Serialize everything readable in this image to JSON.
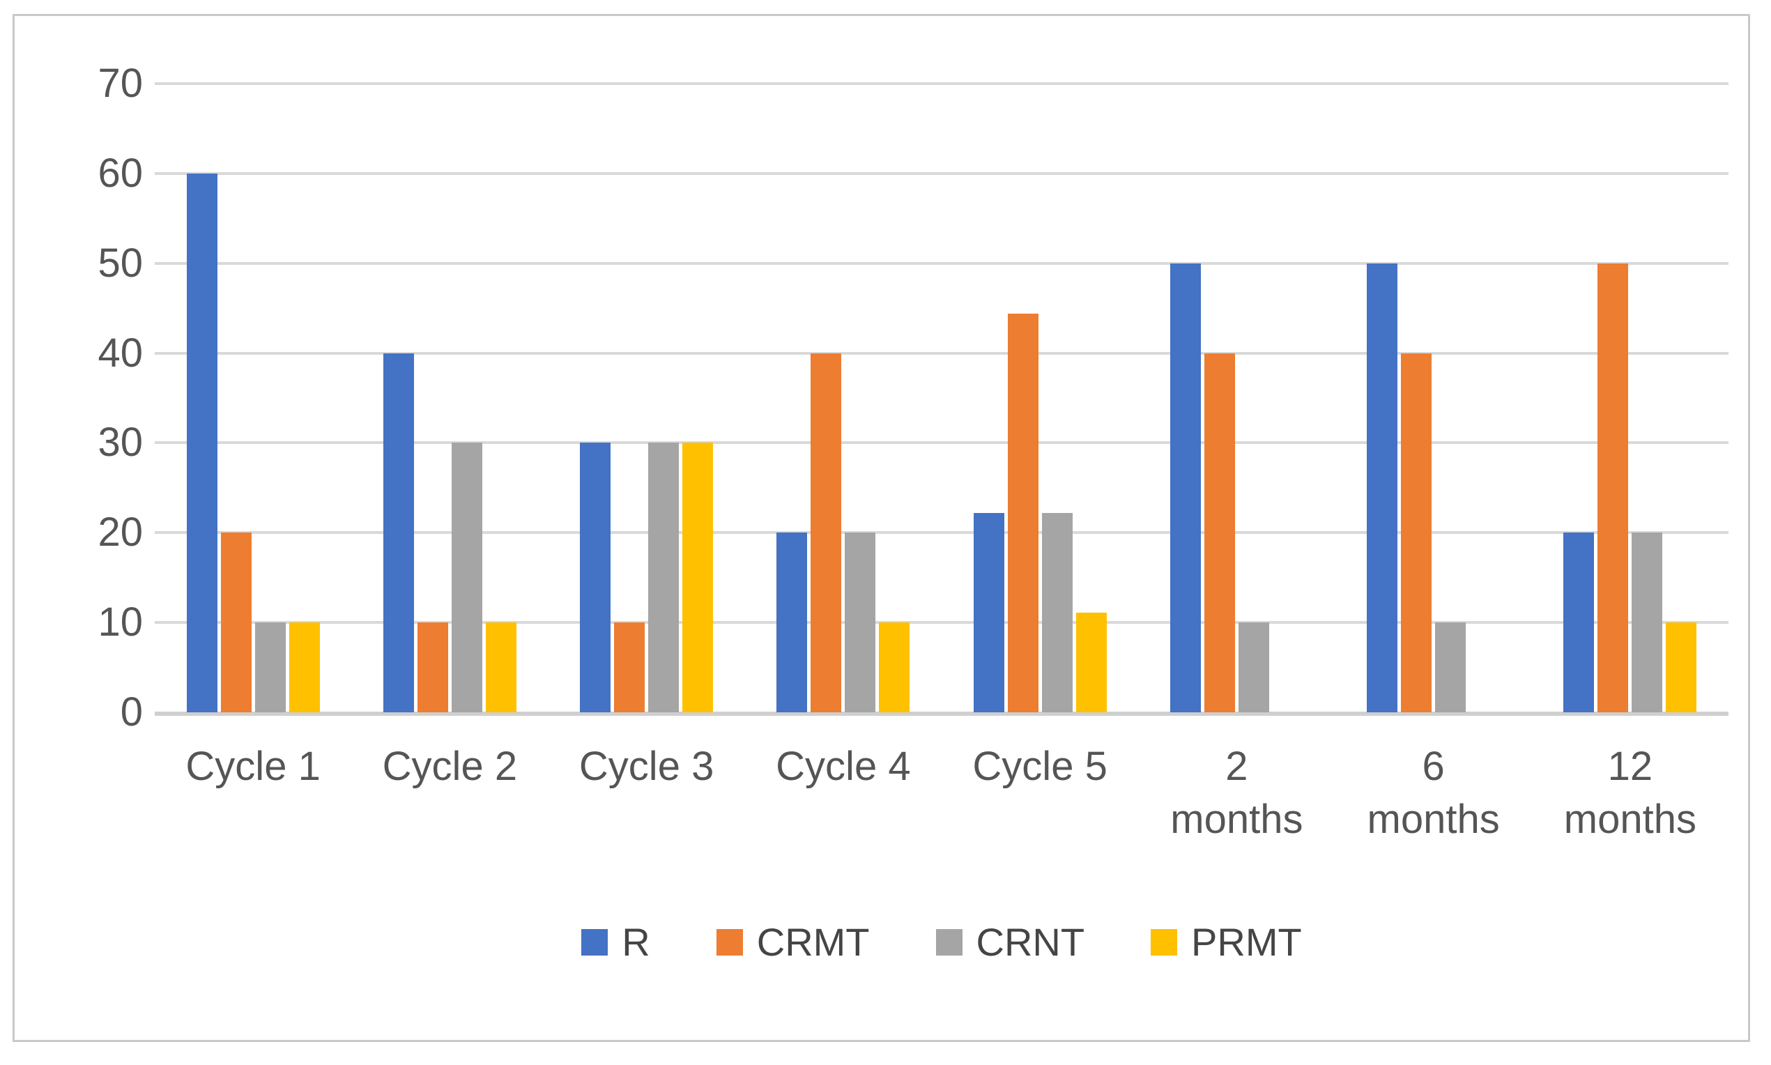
{
  "chart_data": {
    "type": "bar",
    "title": "",
    "xlabel": "",
    "ylabel": "",
    "ylim": [
      0,
      70
    ],
    "yticks": [
      0,
      10,
      20,
      30,
      40,
      50,
      60,
      70
    ],
    "grid": true,
    "legend_position": "bottom-center",
    "categories": [
      "Cycle 1",
      "Cycle 2",
      "Cycle 3",
      "Cycle 4",
      "Cycle 5",
      "2\nmonths",
      "6\nmonths",
      "12\nmonths"
    ],
    "series": [
      {
        "name": "R",
        "color": "#4472C4",
        "values": [
          60,
          40,
          30,
          20,
          22.2,
          50,
          50,
          20
        ]
      },
      {
        "name": "CRMT",
        "color": "#ED7D31",
        "values": [
          20,
          10,
          10,
          40,
          44.4,
          40,
          40,
          50
        ]
      },
      {
        "name": "CRNT",
        "color": "#A5A5A5",
        "values": [
          10,
          30,
          30,
          20,
          22.2,
          10,
          10,
          20
        ]
      },
      {
        "name": "PRMT",
        "color": "#FFC000",
        "values": [
          10,
          10,
          30,
          10,
          11.1,
          0,
          0,
          10
        ]
      }
    ],
    "colors": {
      "gridline": "#d9d9d9",
      "axis_text": "#555555",
      "frame_border": "#c9c9c9"
    }
  }
}
